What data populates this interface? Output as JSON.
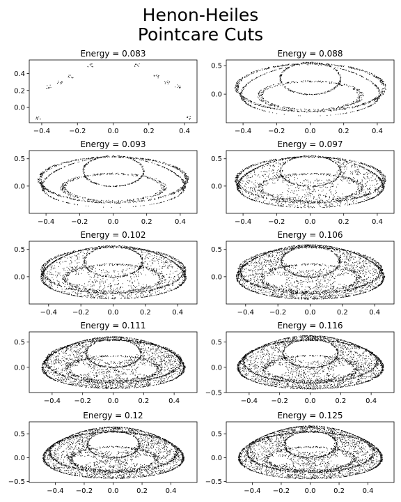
{
  "figure": {
    "title_line1": "Henon-Heiles",
    "title_line2": "Pointcare Cuts"
  },
  "chart_data": [
    {
      "type": "scatter",
      "title": "Energy = 0.083",
      "energy": 0.083,
      "xlim": [
        -0.47,
        0.47
      ],
      "ylim": [
        -0.18,
        0.56
      ],
      "xticks": [
        -0.4,
        -0.2,
        0.0,
        0.2,
        0.4
      ],
      "xtick_labels": [
        "−0.4",
        "−0.2",
        "0.0",
        "0.2",
        "0.4"
      ],
      "yticks": [
        0.0,
        0.2,
        0.4
      ],
      "ytick_labels": [
        "0.0",
        "0.2",
        "0.4"
      ],
      "pattern": "islands"
    },
    {
      "type": "scatter",
      "title": "Energy = 0.088",
      "energy": 0.088,
      "xlim": [
        -0.5,
        0.5
      ],
      "ylim": [
        -0.5,
        0.6
      ],
      "xticks": [
        -0.4,
        -0.2,
        0.0,
        0.2,
        0.4
      ],
      "xtick_labels": [
        "−0.4",
        "−0.2",
        "0.0",
        "0.2",
        "0.4"
      ],
      "yticks": [
        0.0,
        0.5
      ],
      "ytick_labels": [
        "0.0",
        "0.5"
      ],
      "pattern": "orbits"
    },
    {
      "type": "scatter",
      "title": "Energy = 0.093",
      "energy": 0.093,
      "xlim": [
        -0.5,
        0.5
      ],
      "ylim": [
        -0.5,
        0.65
      ],
      "xticks": [
        -0.4,
        -0.2,
        0.0,
        0.2,
        0.4
      ],
      "xtick_labels": [
        "−0.4",
        "−0.2",
        "0.0",
        "0.2",
        "0.4"
      ],
      "yticks": [
        0.0,
        0.5
      ],
      "ytick_labels": [
        "0.0",
        "0.5"
      ],
      "pattern": "orbits"
    },
    {
      "type": "scatter",
      "title": "Energy = 0.097",
      "energy": 0.097,
      "xlim": [
        -0.5,
        0.5
      ],
      "ylim": [
        -0.5,
        0.65
      ],
      "xticks": [
        -0.4,
        -0.2,
        0.0,
        0.2,
        0.4
      ],
      "xtick_labels": [
        "−0.4",
        "−0.2",
        "0.0",
        "0.2",
        "0.4"
      ],
      "yticks": [
        0.0,
        0.5
      ],
      "ytick_labels": [
        "0.0",
        "0.5"
      ],
      "pattern": "mixed"
    },
    {
      "type": "scatter",
      "title": "Energy = 0.102",
      "energy": 0.102,
      "xlim": [
        -0.52,
        0.52
      ],
      "ylim": [
        -0.5,
        0.65
      ],
      "xticks": [
        -0.4,
        -0.2,
        0.0,
        0.2,
        0.4
      ],
      "xtick_labels": [
        "−0.4",
        "−0.2",
        "0.0",
        "0.2",
        "0.4"
      ],
      "yticks": [
        0.0,
        0.5
      ],
      "ytick_labels": [
        "0.0",
        "0.5"
      ],
      "pattern": "mixed"
    },
    {
      "type": "scatter",
      "title": "Energy = 0.106",
      "energy": 0.106,
      "xlim": [
        -0.52,
        0.52
      ],
      "ylim": [
        -0.5,
        0.65
      ],
      "xticks": [
        -0.4,
        -0.2,
        0.0,
        0.2,
        0.4
      ],
      "xtick_labels": [
        "−0.4",
        "−0.2",
        "0.0",
        "0.2",
        "0.4"
      ],
      "yticks": [
        0.0,
        0.5
      ],
      "ytick_labels": [
        "0.0",
        "0.5"
      ],
      "pattern": "chaotic"
    },
    {
      "type": "scatter",
      "title": "Energy = 0.111",
      "energy": 0.111,
      "xlim": [
        -0.55,
        0.55
      ],
      "ylim": [
        -0.5,
        0.7
      ],
      "xticks": [
        -0.4,
        -0.2,
        0.0,
        0.2,
        0.4
      ],
      "xtick_labels": [
        "−0.4",
        "−0.2",
        "0.0",
        "0.2",
        "0.4"
      ],
      "yticks": [
        0.0,
        0.5
      ],
      "ytick_labels": [
        "0.0",
        "0.5"
      ],
      "pattern": "chaotic"
    },
    {
      "type": "scatter",
      "title": "Energy = 0.116",
      "energy": 0.116,
      "xlim": [
        -0.55,
        0.55
      ],
      "ylim": [
        -0.5,
        0.7
      ],
      "xticks": [
        -0.4,
        -0.2,
        0.0,
        0.2,
        0.4
      ],
      "xtick_labels": [
        "−0.4",
        "−0.2",
        "0.0",
        "0.2",
        "0.4"
      ],
      "yticks": [
        -0.5,
        0.0,
        0.5
      ],
      "ytick_labels": [
        "−0.5",
        "0.0",
        "0.5"
      ],
      "pattern": "chaotic"
    },
    {
      "type": "scatter",
      "title": "Energy = 0.12",
      "energy": 0.12,
      "xlim": [
        -0.58,
        0.58
      ],
      "ylim": [
        -0.52,
        0.75
      ],
      "xticks": [
        -0.4,
        -0.2,
        0.0,
        0.2,
        0.4
      ],
      "xtick_labels": [
        "−0.4",
        "−0.2",
        "0.0",
        "0.2",
        "0.4"
      ],
      "yticks": [
        -0.5,
        0.0,
        0.5
      ],
      "ytick_labels": [
        "−0.5",
        "0.0",
        "0.5"
      ],
      "pattern": "chaotic"
    },
    {
      "type": "scatter",
      "title": "Energy = 0.125",
      "energy": 0.125,
      "xlim": [
        -0.58,
        0.58
      ],
      "ylim": [
        -0.52,
        0.75
      ],
      "xticks": [
        -0.4,
        -0.2,
        0.0,
        0.2,
        0.4
      ],
      "xtick_labels": [
        "−0.4",
        "−0.2",
        "0.0",
        "0.2",
        "0.4"
      ],
      "yticks": [
        -0.5,
        0.0,
        0.5
      ],
      "ytick_labels": [
        "−0.5",
        "0.0",
        "0.5"
      ],
      "pattern": "chaotic"
    }
  ]
}
